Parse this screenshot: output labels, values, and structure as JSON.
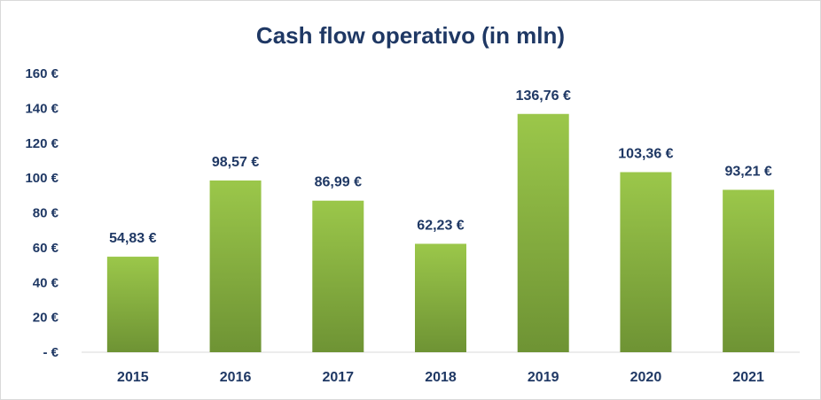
{
  "chart_data": {
    "type": "bar",
    "title": "Cash flow operativo (in mln)",
    "xlabel": "",
    "ylabel": "",
    "categories": [
      "2015",
      "2016",
      "2017",
      "2018",
      "2019",
      "2020",
      "2021"
    ],
    "values": [
      54.83,
      98.57,
      86.99,
      62.23,
      136.76,
      103.36,
      93.21
    ],
    "data_labels": [
      "54,83 €",
      "98,57 €",
      "86,99 €",
      "62,23 €",
      "136,76 €",
      "103,36 €",
      "93,21 €"
    ],
    "ylim": [
      0,
      160
    ],
    "yticks": [
      0,
      20,
      40,
      60,
      80,
      100,
      120,
      140,
      160
    ],
    "ytick_labels": [
      "- €",
      "20 €",
      "40 €",
      "60 €",
      "80 €",
      "100 €",
      "120 €",
      "140 €",
      "160 €"
    ],
    "grid": false,
    "legend": "none",
    "colors": {
      "bar_top": "#9bc74a",
      "bar_bottom": "#6e9334",
      "text": "#1f3864",
      "axis": "#d9d9d9"
    }
  }
}
